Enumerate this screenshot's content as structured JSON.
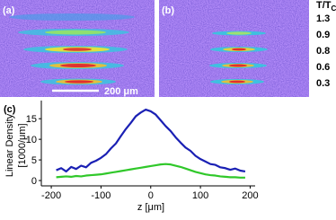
{
  "panels": [
    {
      "label": "(a)",
      "scale_bar": "200 μm"
    },
    {
      "label": "(b)"
    }
  ],
  "temperature_legend": {
    "title": "T/T",
    "title_subscript": "C",
    "values": [
      "1.3",
      "0.9",
      "0.8",
      "0.6",
      "0.3"
    ]
  },
  "chart_data": {
    "type": "line",
    "label": "(c)",
    "y_label": [
      "Linear Density",
      "[1000/μm]"
    ],
    "x_label": "z [μm]",
    "x": [
      -190,
      -180,
      -170,
      -160,
      -150,
      -140,
      -130,
      -120,
      -110,
      -100,
      -90,
      -80,
      -70,
      -60,
      -50,
      -40,
      -30,
      -20,
      -10,
      0,
      10,
      20,
      30,
      40,
      50,
      60,
      70,
      80,
      90,
      100,
      110,
      120,
      130,
      140,
      150,
      160,
      170,
      180,
      190
    ],
    "series": [
      {
        "color": "#1a20b4",
        "values": [
          2.5,
          3.0,
          2.2,
          3.3,
          2.8,
          3.6,
          3.2,
          4.3,
          4.8,
          5.5,
          6.4,
          7.8,
          9.0,
          10.8,
          12.5,
          14.0,
          15.6,
          16.5,
          17.2,
          16.8,
          16.0,
          14.6,
          13.2,
          12.0,
          10.5,
          9.2,
          8.0,
          7.2,
          6.0,
          5.2,
          4.6,
          4.0,
          3.8,
          3.2,
          3.0,
          2.6,
          2.9,
          2.4,
          2.2
        ]
      },
      {
        "color": "#30c82a",
        "values": [
          0.8,
          0.9,
          1.0,
          0.9,
          1.1,
          1.0,
          1.2,
          1.3,
          1.4,
          1.5,
          1.7,
          1.9,
          2.1,
          2.3,
          2.5,
          2.7,
          2.9,
          3.1,
          3.3,
          3.5,
          3.7,
          3.9,
          4.0,
          3.9,
          3.6,
          3.3,
          2.9,
          2.5,
          2.1,
          1.8,
          1.5,
          1.3,
          1.2,
          1.0,
          0.9,
          0.8,
          0.8,
          0.7,
          0.7
        ]
      }
    ],
    "xlim": [
      -220,
      210
    ],
    "ylim": [
      -1.3,
      19.4
    ],
    "xticks": [
      -200,
      -100,
      0,
      100,
      200
    ],
    "yticks": [
      0,
      5,
      10,
      15
    ]
  }
}
